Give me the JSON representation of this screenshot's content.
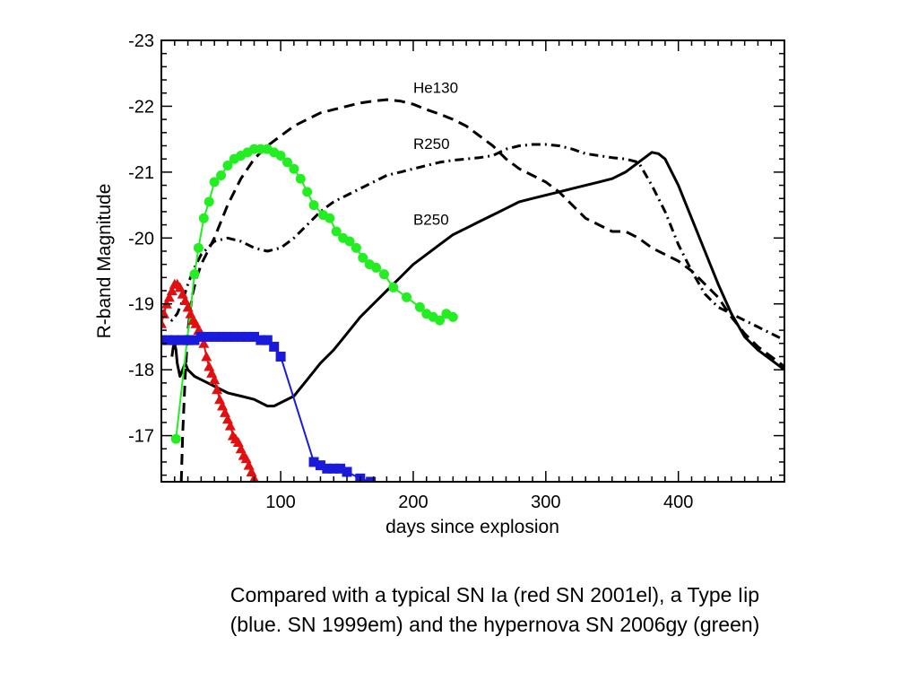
{
  "chart_data": {
    "type": "line",
    "xlabel": "days since explosion",
    "ylabel": "R-band Magnitude",
    "xlim": [
      10,
      480
    ],
    "ylim": [
      -16.3,
      -23.0
    ],
    "y_reversed": true,
    "x_ticks": [
      100,
      200,
      300,
      400
    ],
    "x_tick_labels": [
      "100",
      "200",
      "300",
      "400"
    ],
    "y_ticks": [
      -17,
      -18,
      -19,
      -20,
      -21,
      -22,
      -23
    ],
    "y_tick_labels": [
      "-17",
      "-18",
      "-19",
      "-20",
      "-21",
      "-22",
      "-23"
    ],
    "grid": false,
    "model_series": [
      {
        "name": "He130",
        "style": "dashed",
        "color": "#000000",
        "x": [
          25,
          26,
          28,
          30,
          33,
          36,
          40,
          45,
          50,
          60,
          70,
          80,
          90,
          100,
          110,
          120,
          130,
          140,
          150,
          160,
          170,
          180,
          190,
          200,
          210,
          220,
          230,
          240,
          250,
          260,
          270,
          280,
          290,
          300,
          310,
          320,
          330,
          340,
          350,
          360,
          370,
          380,
          390,
          400,
          410,
          420,
          430,
          440,
          450,
          460,
          470,
          480
        ],
        "y": [
          -16.3,
          -17.0,
          -17.9,
          -18.6,
          -19.1,
          -19.35,
          -19.6,
          -19.8,
          -20.0,
          -20.5,
          -20.9,
          -21.2,
          -21.4,
          -21.55,
          -21.7,
          -21.8,
          -21.9,
          -21.95,
          -22.0,
          -22.05,
          -22.08,
          -22.1,
          -22.08,
          -22.03,
          -21.95,
          -21.88,
          -21.8,
          -21.7,
          -21.55,
          -21.4,
          -21.2,
          -21.05,
          -20.95,
          -20.85,
          -20.7,
          -20.5,
          -20.3,
          -20.2,
          -20.1,
          -20.1,
          -20.0,
          -19.85,
          -19.75,
          -19.65,
          -19.5,
          -19.3,
          -19.1,
          -18.8,
          -18.55,
          -18.35,
          -18.2,
          -18.05
        ]
      },
      {
        "name": "R250",
        "style": "dash-dot",
        "color": "#000000",
        "x": [
          10,
          14,
          18,
          22,
          26,
          30,
          35,
          40,
          50,
          60,
          70,
          80,
          90,
          100,
          110,
          120,
          130,
          140,
          150,
          160,
          170,
          180,
          190,
          200,
          210,
          220,
          230,
          240,
          250,
          260,
          270,
          280,
          290,
          300,
          310,
          320,
          330,
          340,
          350,
          360,
          370,
          380,
          390,
          400,
          410,
          420,
          430,
          440,
          450,
          460,
          470,
          480
        ],
        "y": [
          -18.9,
          -18.8,
          -18.75,
          -18.85,
          -19.05,
          -19.3,
          -19.55,
          -19.75,
          -19.95,
          -20.0,
          -19.95,
          -19.85,
          -19.8,
          -19.85,
          -20.0,
          -20.2,
          -20.4,
          -20.55,
          -20.65,
          -20.75,
          -20.85,
          -20.95,
          -21.0,
          -21.05,
          -21.1,
          -21.15,
          -21.18,
          -21.2,
          -21.22,
          -21.25,
          -21.35,
          -21.4,
          -21.42,
          -21.42,
          -21.4,
          -21.35,
          -21.28,
          -21.25,
          -21.22,
          -21.2,
          -21.15,
          -20.8,
          -20.4,
          -19.9,
          -19.5,
          -19.15,
          -18.95,
          -18.85,
          -18.75,
          -18.65,
          -18.55,
          -18.45
        ]
      },
      {
        "name": "B250",
        "style": "solid",
        "color": "#000000",
        "x": [
          18,
          19,
          20,
          21,
          22,
          24,
          26,
          28,
          30,
          35,
          40,
          50,
          60,
          70,
          80,
          90,
          95,
          100,
          110,
          120,
          130,
          140,
          150,
          160,
          170,
          180,
          190,
          200,
          210,
          220,
          230,
          240,
          250,
          260,
          270,
          280,
          290,
          300,
          310,
          320,
          330,
          340,
          350,
          360,
          370,
          380,
          385,
          390,
          400,
          410,
          420,
          430,
          440,
          450,
          460,
          470,
          480
        ],
        "y": [
          -18.2,
          -18.35,
          -18.4,
          -18.3,
          -18.1,
          -17.9,
          -18.0,
          -18.1,
          -18.0,
          -17.9,
          -17.85,
          -17.75,
          -17.65,
          -17.6,
          -17.55,
          -17.45,
          -17.45,
          -17.5,
          -17.6,
          -17.85,
          -18.1,
          -18.3,
          -18.55,
          -18.8,
          -19.0,
          -19.2,
          -19.4,
          -19.6,
          -19.75,
          -19.9,
          -20.05,
          -20.15,
          -20.25,
          -20.35,
          -20.45,
          -20.55,
          -20.6,
          -20.65,
          -20.7,
          -20.75,
          -20.8,
          -20.85,
          -20.9,
          -21.0,
          -21.15,
          -21.3,
          -21.28,
          -21.2,
          -20.8,
          -20.3,
          -19.8,
          -19.3,
          -18.85,
          -18.5,
          -18.3,
          -18.15,
          -18.0
        ]
      }
    ],
    "observed_series": [
      {
        "color": "#e01010",
        "marker": "triangle",
        "x": [
          10,
          12,
          14,
          16,
          18,
          20,
          22,
          24,
          26,
          28,
          30,
          32,
          34,
          36,
          38,
          40,
          42,
          44,
          46,
          48,
          50,
          52,
          54,
          56,
          58,
          60,
          62,
          64,
          66,
          68,
          70,
          72,
          74,
          76,
          78,
          80,
          82
        ],
        "y": [
          -18.7,
          -18.85,
          -19.0,
          -19.1,
          -19.2,
          -19.3,
          -19.3,
          -19.25,
          -19.15,
          -19.05,
          -18.95,
          -18.85,
          -18.75,
          -18.7,
          -18.6,
          -18.55,
          -18.4,
          -18.2,
          -18.05,
          -17.95,
          -17.85,
          -17.7,
          -17.55,
          -17.45,
          -17.35,
          -17.25,
          -17.15,
          -17.0,
          -16.95,
          -16.9,
          -16.8,
          -16.7,
          -16.65,
          -16.55,
          -16.45,
          -16.35,
          -16.25
        ]
      },
      {
        "color": "#1a1add",
        "marker": "square",
        "x": [
          10,
          15,
          20,
          25,
          30,
          35,
          40,
          45,
          50,
          55,
          60,
          65,
          70,
          75,
          80,
          85,
          90,
          95,
          100,
          125,
          130,
          135,
          140,
          145,
          150,
          160,
          168
        ],
        "y": [
          -18.45,
          -18.45,
          -18.45,
          -18.45,
          -18.45,
          -18.45,
          -18.5,
          -18.5,
          -18.5,
          -18.5,
          -18.5,
          -18.5,
          -18.5,
          -18.5,
          -18.5,
          -18.45,
          -18.45,
          -18.35,
          -18.2,
          -16.6,
          -16.55,
          -16.5,
          -16.5,
          -16.5,
          -16.45,
          -16.35,
          -16.3
        ]
      },
      {
        "color": "#22ee22",
        "marker": "circle",
        "x": [
          21,
          35,
          38,
          42,
          46,
          50,
          55,
          60,
          65,
          70,
          75,
          80,
          85,
          90,
          95,
          100,
          105,
          110,
          115,
          120,
          125,
          132,
          137,
          142,
          147,
          152,
          157,
          162,
          167,
          172,
          178,
          185,
          195,
          205,
          210,
          215,
          220,
          225,
          230
        ],
        "y": [
          -16.95,
          -19.45,
          -19.85,
          -20.3,
          -20.55,
          -20.85,
          -20.95,
          -21.1,
          -21.2,
          -21.25,
          -21.3,
          -21.35,
          -21.35,
          -21.35,
          -21.3,
          -21.25,
          -21.15,
          -21.05,
          -20.9,
          -20.7,
          -20.5,
          -20.35,
          -20.3,
          -20.1,
          -20.0,
          -19.95,
          -19.85,
          -19.7,
          -19.6,
          -19.55,
          -19.45,
          -19.25,
          -19.1,
          -18.95,
          -18.85,
          -18.8,
          -18.75,
          -18.85,
          -18.8
        ]
      }
    ],
    "annotations": [
      {
        "text": "He130",
        "x": 200,
        "y": -22.2
      },
      {
        "text": "R250",
        "x": 200,
        "y": -21.35
      },
      {
        "text": "B250",
        "x": 200,
        "y": -20.2
      }
    ]
  },
  "caption": {
    "line1": "Compared with a typical SN Ia (red SN 2001el), a Type Iip",
    "line2": "(blue. SN 1999em) and the hypernova SN 2006gy (green)"
  }
}
